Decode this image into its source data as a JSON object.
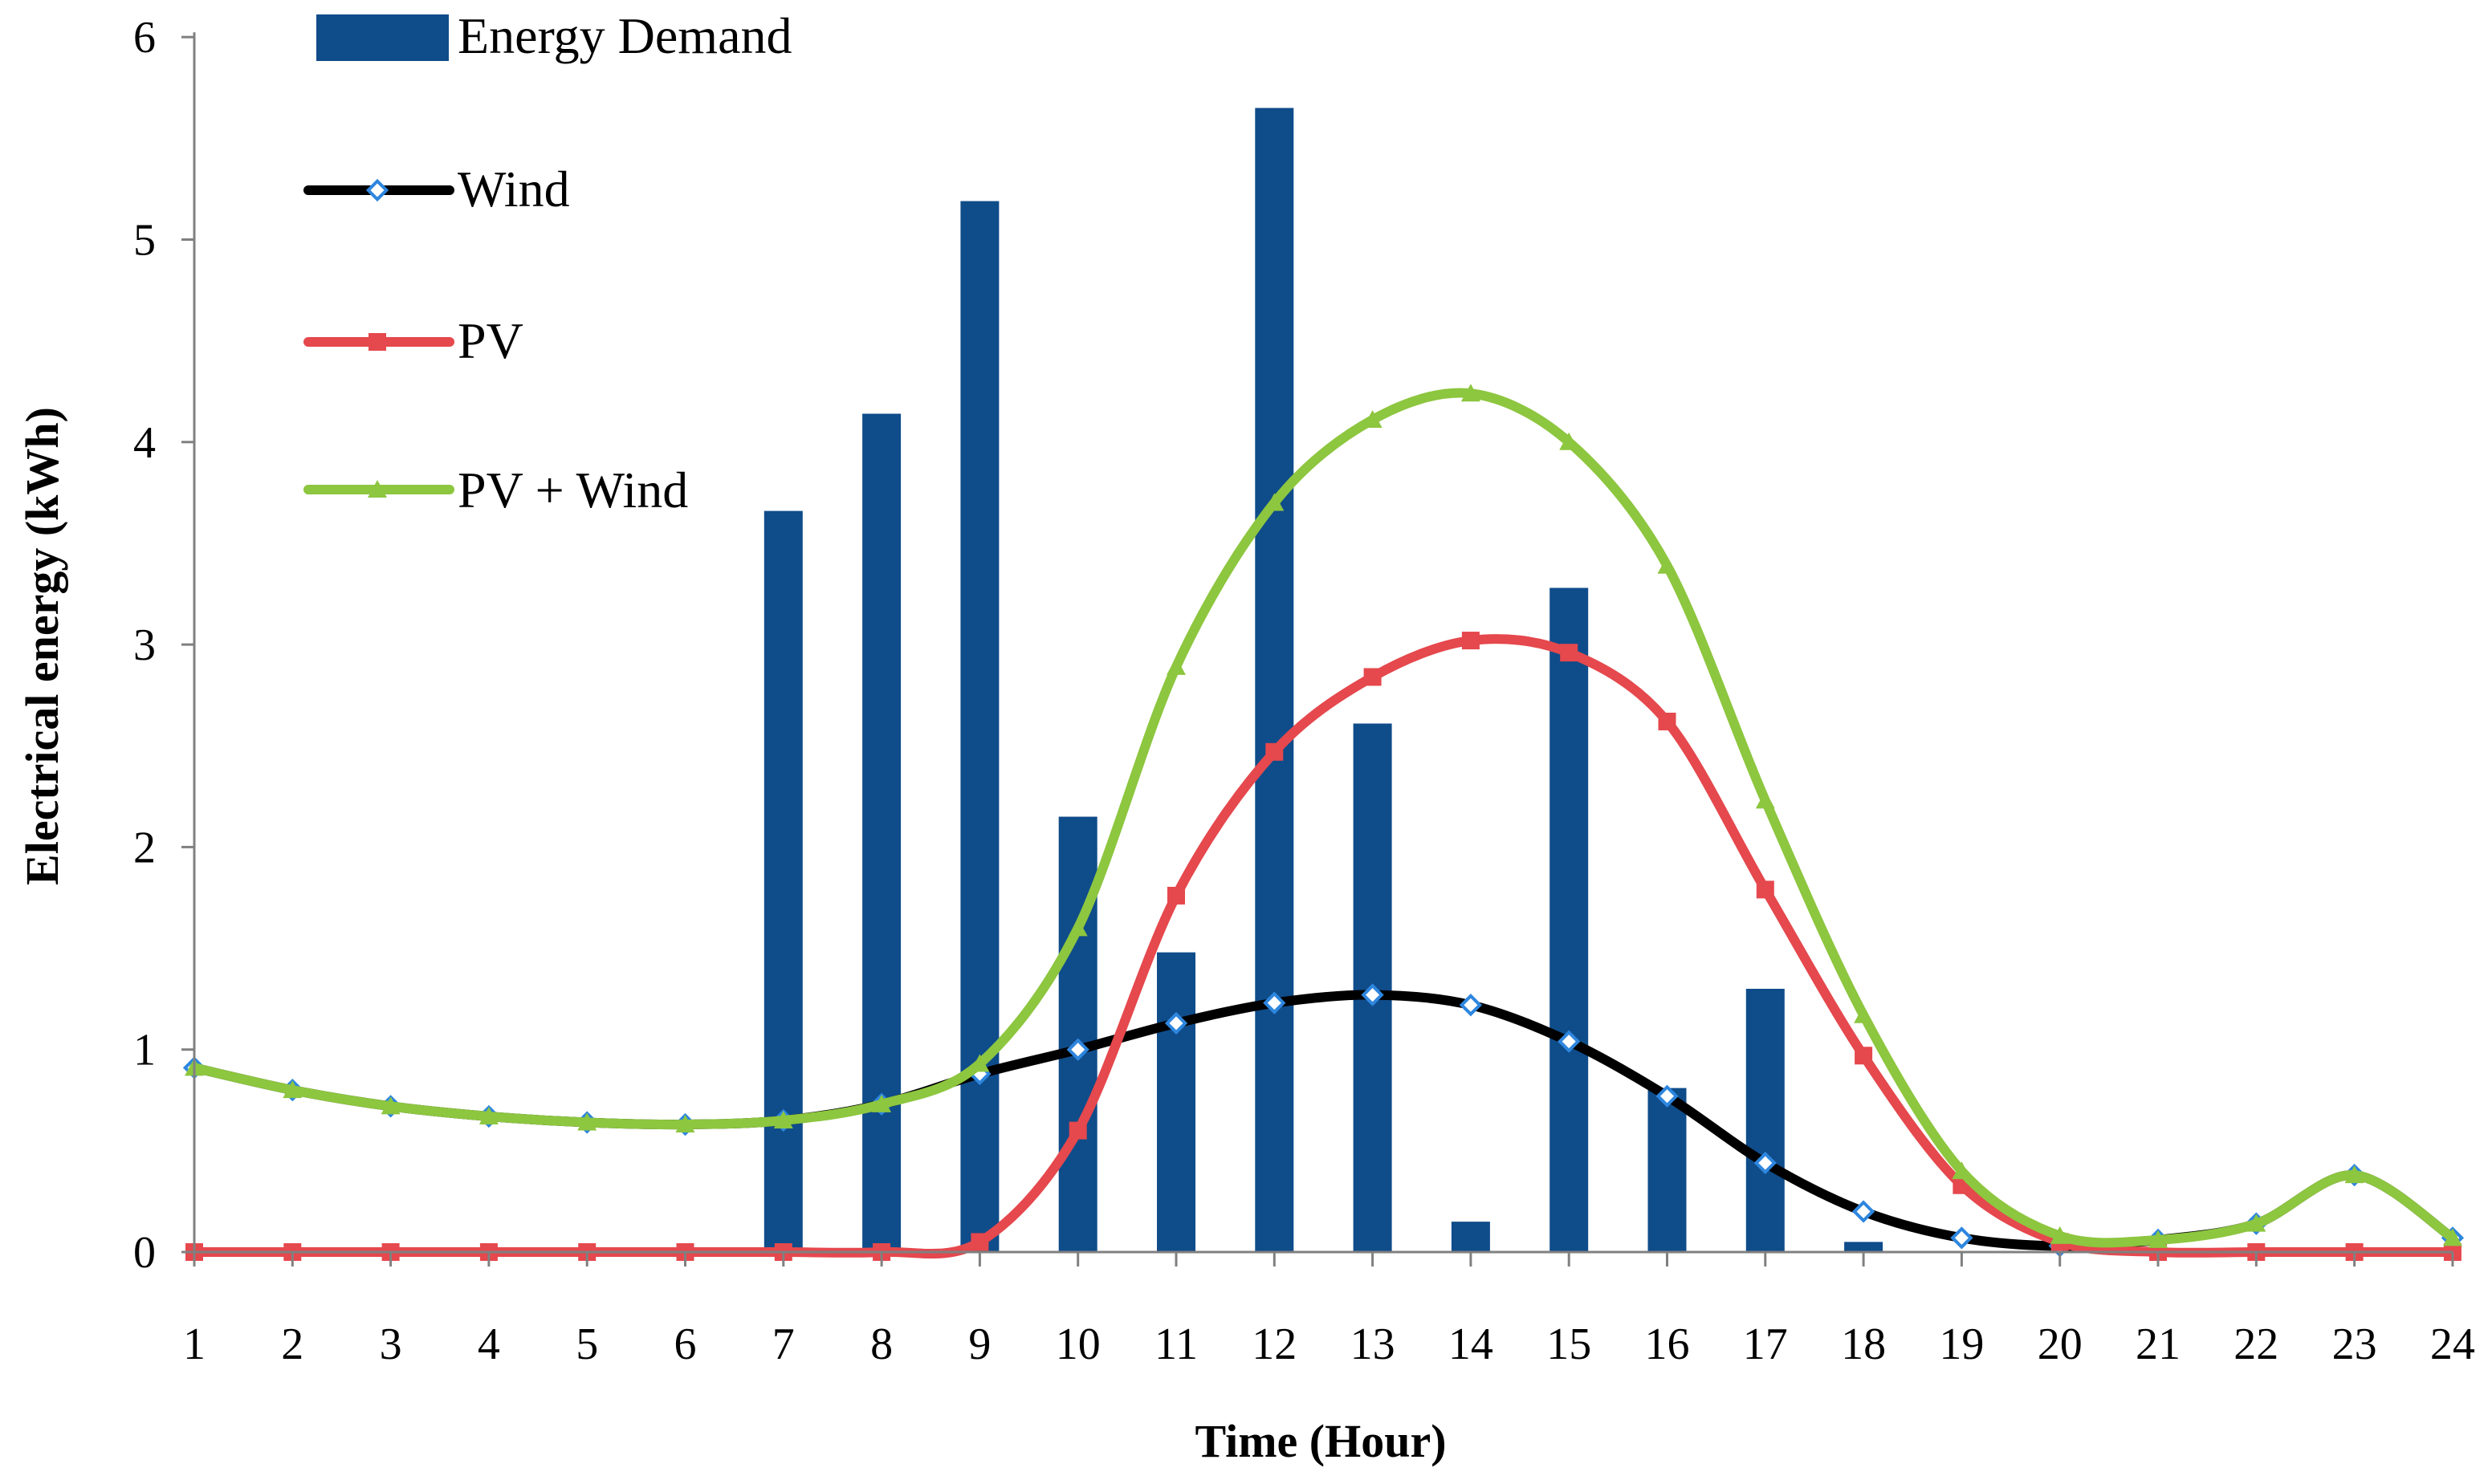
{
  "chart_data": {
    "type": "bar+line",
    "xlabel": "Time (Hour)",
    "ylabel": "Electrical energy (kWh)",
    "ylim": [
      0,
      6
    ],
    "yticks": [
      0,
      1,
      2,
      3,
      4,
      5,
      6
    ],
    "categories": [
      "1",
      "2",
      "3",
      "4",
      "5",
      "6",
      "7",
      "8",
      "9",
      "10",
      "11",
      "12",
      "13",
      "14",
      "15",
      "16",
      "17",
      "18",
      "19",
      "20",
      "21",
      "22",
      "23",
      "24"
    ],
    "legend": [
      "Energy Demand",
      "Wind",
      "PV",
      "PV + Wind"
    ],
    "legend_position": "top-left",
    "series": [
      {
        "name": "Energy Demand",
        "kind": "bar",
        "color": "#0F4C8A",
        "values": [
          0,
          0,
          0,
          0,
          0,
          0,
          3.66,
          4.14,
          5.19,
          2.15,
          1.48,
          5.65,
          2.61,
          0.15,
          3.28,
          0.81,
          1.3,
          0.05,
          0,
          0,
          0,
          0,
          0,
          0
        ]
      },
      {
        "name": "Wind",
        "kind": "line",
        "color": "#000000",
        "marker": "diamond",
        "marker_color": "#2E86DE",
        "values": [
          0.91,
          0.8,
          0.72,
          0.67,
          0.64,
          0.63,
          0.65,
          0.73,
          0.88,
          1.0,
          1.13,
          1.23,
          1.27,
          1.22,
          1.04,
          0.77,
          0.44,
          0.2,
          0.07,
          0.03,
          0.06,
          0.14,
          0.38,
          0.07
        ]
      },
      {
        "name": "PV",
        "kind": "line",
        "color": "#E5484D",
        "marker": "square",
        "marker_color": "#E5484D",
        "values": [
          0,
          0,
          0,
          0,
          0,
          0,
          0,
          0,
          0.05,
          0.6,
          1.76,
          2.47,
          2.84,
          3.02,
          2.96,
          2.62,
          1.79,
          0.97,
          0.33,
          0.05,
          0,
          0,
          0,
          0
        ]
      },
      {
        "name": "PV + Wind",
        "kind": "line",
        "color": "#8DC63F",
        "marker": "triangle",
        "marker_color": "#8DC63F",
        "values": [
          0.91,
          0.8,
          0.72,
          0.67,
          0.64,
          0.63,
          0.65,
          0.73,
          0.93,
          1.6,
          2.89,
          3.7,
          4.11,
          4.24,
          4.0,
          3.39,
          2.23,
          1.17,
          0.4,
          0.08,
          0.06,
          0.14,
          0.38,
          0.07
        ]
      }
    ]
  }
}
